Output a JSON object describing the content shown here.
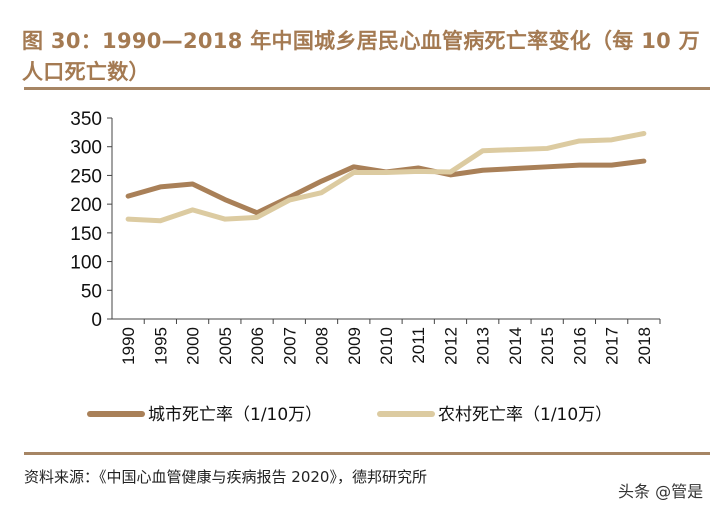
{
  "title": "图 30：1990—2018 年中国城乡居民心血管病死亡率变化（每 10 万人口死亡数）",
  "source": "资料来源：《中国心血管健康与疾病报告 2020》，德邦研究所",
  "watermark": "头条 @管是",
  "chart_data": {
    "type": "line",
    "title": "图 30：1990—2018 年中国城乡居民心血管病死亡率变化（每 10 万人口死亡数）",
    "categories": [
      "1990",
      "1995",
      "2000",
      "2005",
      "2006",
      "2007",
      "2008",
      "2009",
      "2010",
      "2011",
      "2012",
      "2013",
      "2014",
      "2015",
      "2016",
      "2017",
      "2018"
    ],
    "ylim": [
      0,
      350
    ],
    "yticks": [
      "0",
      "50",
      "100",
      "150",
      "200",
      "250",
      "300",
      "350"
    ],
    "grid": false,
    "legend": "bottom",
    "series": [
      {
        "name": "城市死亡率（1/10万）",
        "color": "#a98058",
        "values": [
          214,
          230,
          235,
          208,
          185,
          212,
          240,
          265,
          256,
          263,
          251,
          259,
          262,
          265,
          268,
          268,
          275
        ]
      },
      {
        "name": "农村死亡率（1/10万）",
        "color": "#dccba1",
        "values": [
          174,
          171,
          190,
          174,
          177,
          207,
          220,
          255,
          255,
          257,
          256,
          293,
          295,
          297,
          310,
          312,
          323
        ]
      }
    ]
  }
}
